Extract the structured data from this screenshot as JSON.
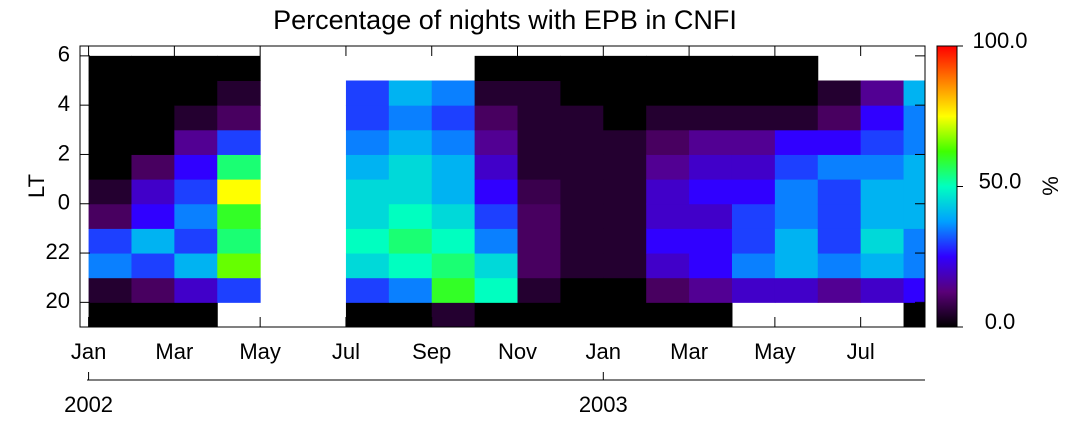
{
  "chart_data": {
    "type": "heatmap",
    "title": "Percentage of nights with EPB in CNFI",
    "ylabel": "LT",
    "zlabel": "%",
    "x": [
      0,
      1,
      2,
      3,
      4,
      5,
      6,
      7,
      8,
      9,
      10,
      11,
      12,
      13,
      14,
      15,
      16,
      17,
      18,
      19
    ],
    "y": [
      19,
      20,
      21,
      22,
      23,
      24,
      25,
      26,
      27,
      28,
      29
    ],
    "values": [
      [
        0,
        5,
        35,
        30,
        10,
        5,
        0,
        0,
        0,
        0,
        0
      ],
      [
        0,
        10,
        30,
        40,
        25,
        20,
        10,
        0,
        0,
        0,
        0
      ],
      [
        0,
        20,
        40,
        30,
        35,
        30,
        25,
        15,
        5,
        0,
        0
      ],
      [
        null,
        30,
        65,
        55,
        60,
        75,
        55,
        30,
        10,
        5,
        0
      ],
      [
        null,
        null,
        null,
        null,
        null,
        null,
        null,
        null,
        null,
        null,
        null
      ],
      [
        null,
        null,
        null,
        null,
        null,
        null,
        null,
        null,
        null,
        null,
        null
      ],
      [
        0,
        30,
        45,
        50,
        45,
        45,
        40,
        35,
        30,
        30,
        null
      ],
      [
        0,
        35,
        50,
        55,
        50,
        45,
        45,
        40,
        35,
        40,
        null
      ],
      [
        5,
        60,
        55,
        50,
        45,
        40,
        40,
        35,
        30,
        35,
        null
      ],
      [
        0,
        50,
        45,
        35,
        30,
        25,
        20,
        15,
        10,
        5,
        0
      ],
      [
        0,
        5,
        10,
        10,
        10,
        8,
        5,
        5,
        5,
        5,
        0
      ],
      [
        0,
        0,
        5,
        5,
        5,
        5,
        5,
        5,
        5,
        0,
        0
      ],
      [
        0,
        0,
        5,
        5,
        5,
        5,
        5,
        5,
        0,
        0,
        0
      ],
      [
        0,
        10,
        20,
        25,
        20,
        20,
        15,
        10,
        5,
        0,
        0
      ],
      [
        0,
        15,
        25,
        25,
        20,
        25,
        20,
        15,
        5,
        0,
        0
      ],
      [
        null,
        20,
        35,
        30,
        30,
        25,
        20,
        15,
        5,
        0,
        0
      ],
      [
        null,
        20,
        40,
        40,
        35,
        35,
        30,
        25,
        5,
        0,
        0
      ],
      [
        null,
        15,
        35,
        30,
        30,
        30,
        35,
        25,
        10,
        5,
        null
      ],
      [
        null,
        20,
        40,
        45,
        40,
        40,
        35,
        30,
        25,
        15,
        null
      ],
      [
        0,
        25,
        35,
        35,
        40,
        40,
        40,
        35,
        35,
        40,
        null
      ]
    ],
    "xlim": [
      -0.2,
      19.5
    ],
    "ylim": [
      19,
      30.4
    ],
    "zlim": [
      0,
      100
    ],
    "xticks": [
      {
        "value": 0,
        "label": "Jan"
      },
      {
        "value": 2,
        "label": "Mar"
      },
      {
        "value": 4,
        "label": "May"
      },
      {
        "value": 6,
        "label": "Jul"
      },
      {
        "value": 8,
        "label": "Sep"
      },
      {
        "value": 10,
        "label": "Nov"
      },
      {
        "value": 12,
        "label": "Jan"
      },
      {
        "value": 14,
        "label": "Mar"
      },
      {
        "value": 16,
        "label": "May"
      },
      {
        "value": 18,
        "label": "Jul"
      }
    ],
    "year_ticks": [
      {
        "value": 0,
        "label": "2002"
      },
      {
        "value": 12,
        "label": "2003"
      }
    ],
    "yticks": [
      20,
      22,
      {
        "value": 24,
        "label": "0"
      },
      {
        "value": 26,
        "label": "2"
      },
      {
        "value": 28,
        "label": "4"
      },
      {
        "value": 30,
        "label": "6"
      }
    ],
    "zticks": [
      {
        "value": 0,
        "label": "0.0"
      },
      {
        "value": 50,
        "label": "50.0"
      },
      {
        "value": 100,
        "label": "100.0"
      }
    ],
    "colormap": [
      "#000000",
      "#5a0078",
      "#3000ff",
      "#00a0ff",
      "#00ffc0",
      "#40ff00",
      "#ffff00",
      "#ff8000",
      "#ff0000"
    ]
  }
}
